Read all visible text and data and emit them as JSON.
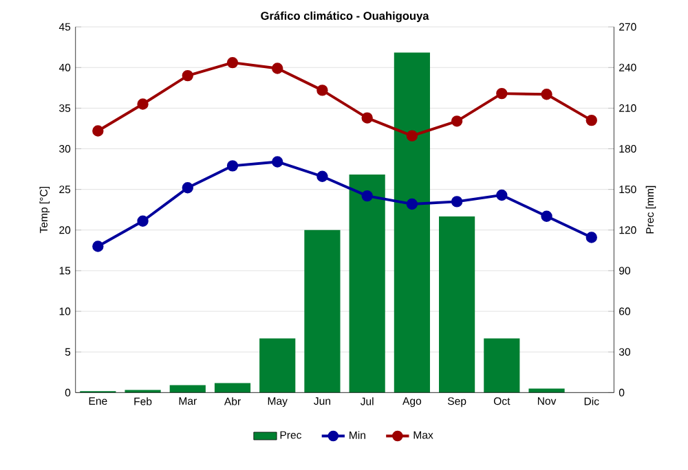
{
  "chart_data": {
    "type": "line",
    "title": "Gráfico climático - Ouahigouya",
    "ylabel": "Temp [°C]",
    "y2label": "Prec [mm]",
    "categories": [
      "Ene",
      "Feb",
      "Mar",
      "Abr",
      "May",
      "Jun",
      "Jul",
      "Ago",
      "Sep",
      "Oct",
      "Nov",
      "Dic"
    ],
    "series": [
      {
        "name": "Prec",
        "type": "bar",
        "axis": "y2",
        "color": "#007f31",
        "values": [
          1,
          2,
          5.5,
          7,
          40,
          120,
          161,
          251,
          130,
          40,
          3,
          0
        ]
      },
      {
        "name": "Min",
        "color": "#00009c",
        "values": [
          18.0,
          21.1,
          25.2,
          27.9,
          28.4,
          26.6,
          24.2,
          23.2,
          23.5,
          24.3,
          21.7,
          19.1
        ]
      },
      {
        "name": "Max",
        "color": "#9c0000",
        "values": [
          32.2,
          35.5,
          39.0,
          40.6,
          39.9,
          37.2,
          33.8,
          31.6,
          33.4,
          36.8,
          36.7,
          33.5
        ]
      }
    ],
    "ylim": [
      0,
      45
    ],
    "yticks": [
      0,
      5,
      10,
      15,
      20,
      25,
      30,
      35,
      40,
      45
    ],
    "y2lim": [
      0,
      270
    ],
    "y2ticks": [
      0,
      30,
      60,
      90,
      120,
      150,
      180,
      210,
      240,
      270
    ],
    "grid": true,
    "legend": "bottom",
    "marker": "circle",
    "line_style": "solid"
  }
}
